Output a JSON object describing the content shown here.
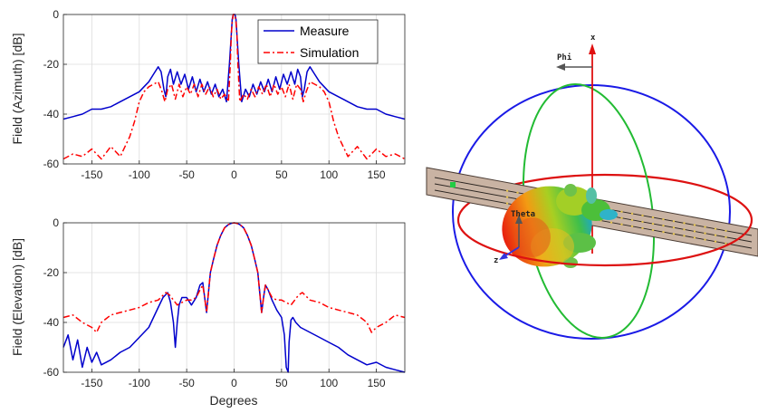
{
  "chart_data": [
    {
      "type": "line",
      "xlabel": "",
      "ylabel": "Field (Azimuth) [dB]",
      "xlim": [
        -180,
        180
      ],
      "ylim": [
        -60,
        0
      ],
      "xticks": [
        -150,
        -100,
        -50,
        0,
        50,
        100,
        150
      ],
      "yticks": [
        -60,
        -40,
        -20,
        0
      ],
      "grid": true,
      "legend_position": "top-right",
      "series": [
        {
          "name": "Measure",
          "color": "#0000cc",
          "style": "solid",
          "x": [
            -180,
            -170,
            -160,
            -150,
            -140,
            -130,
            -120,
            -110,
            -100,
            -95,
            -90,
            -85,
            -80,
            -77,
            -74,
            -72,
            -70,
            -67,
            -64,
            -60,
            -56,
            -52,
            -48,
            -44,
            -40,
            -36,
            -32,
            -28,
            -24,
            -20,
            -16,
            -12,
            -8,
            -5,
            -3,
            -2,
            -1,
            0,
            1,
            2,
            3,
            5,
            8,
            12,
            16,
            20,
            24,
            28,
            32,
            36,
            40,
            44,
            48,
            52,
            56,
            60,
            64,
            67,
            70,
            72,
            74,
            77,
            80,
            85,
            90,
            95,
            100,
            110,
            120,
            130,
            140,
            150,
            160,
            170,
            180
          ],
          "values": [
            -42,
            -41,
            -40,
            -38,
            -38,
            -37,
            -35,
            -33,
            -31,
            -29,
            -27,
            -24,
            -21,
            -23,
            -30,
            -33,
            -25,
            -22,
            -28,
            -23,
            -28,
            -24,
            -30,
            -25,
            -31,
            -26,
            -31,
            -27,
            -32,
            -28,
            -33,
            -30,
            -35,
            -20,
            -8,
            -2,
            0,
            0,
            0,
            -2,
            -8,
            -20,
            -35,
            -30,
            -33,
            -28,
            -32,
            -27,
            -31,
            -26,
            -31,
            -25,
            -30,
            -24,
            -28,
            -23,
            -28,
            -22,
            -25,
            -33,
            -30,
            -23,
            -21,
            -24,
            -27,
            -29,
            -31,
            -33,
            -35,
            -37,
            -38,
            -38,
            -40,
            -41,
            -42
          ]
        },
        {
          "name": "Simulation",
          "color": "#ff0000",
          "style": "dashdot",
          "x": [
            -180,
            -170,
            -160,
            -150,
            -140,
            -130,
            -120,
            -110,
            -105,
            -100,
            -95,
            -90,
            -85,
            -80,
            -76,
            -73,
            -70,
            -66,
            -62,
            -58,
            -54,
            -50,
            -46,
            -42,
            -38,
            -34,
            -30,
            -26,
            -22,
            -18,
            -14,
            -10,
            -6,
            -4,
            -3,
            -2,
            -1,
            0,
            1,
            2,
            3,
            4,
            6,
            10,
            14,
            18,
            22,
            26,
            30,
            34,
            38,
            42,
            46,
            50,
            54,
            58,
            62,
            66,
            70,
            73,
            76,
            80,
            85,
            90,
            95,
            100,
            105,
            110,
            120,
            130,
            140,
            150,
            160,
            170,
            180
          ],
          "values": [
            -58,
            -56,
            -57,
            -54,
            -58,
            -53,
            -57,
            -49,
            -43,
            -35,
            -31,
            -29,
            -28,
            -27,
            -31,
            -35,
            -30,
            -28,
            -34,
            -28,
            -33,
            -29,
            -32,
            -28,
            -33,
            -28,
            -32,
            -29,
            -33,
            -30,
            -34,
            -32,
            -35,
            -20,
            -8,
            -3,
            0,
            0,
            0,
            -3,
            -8,
            -20,
            -35,
            -32,
            -34,
            -30,
            -33,
            -29,
            -32,
            -28,
            -33,
            -28,
            -32,
            -29,
            -33,
            -28,
            -34,
            -28,
            -30,
            -35,
            -31,
            -27,
            -28,
            -29,
            -31,
            -35,
            -43,
            -49,
            -57,
            -53,
            -58,
            -54,
            -57,
            -56,
            -58
          ]
        }
      ]
    },
    {
      "type": "line",
      "xlabel": "Degrees",
      "ylabel": "Field (Elevation) [dB]",
      "xlim": [
        -180,
        180
      ],
      "ylim": [
        -60,
        0
      ],
      "xticks": [
        -150,
        -100,
        -50,
        0,
        50,
        100,
        150
      ],
      "yticks": [
        -60,
        -40,
        -20,
        0
      ],
      "grid": true,
      "series": [
        {
          "name": "Measure",
          "color": "#0000cc",
          "style": "solid",
          "x": [
            -180,
            -175,
            -170,
            -165,
            -160,
            -155,
            -150,
            -145,
            -140,
            -130,
            -120,
            -110,
            -100,
            -90,
            -85,
            -80,
            -75,
            -70,
            -67,
            -64,
            -62,
            -60,
            -58,
            -55,
            -50,
            -45,
            -40,
            -36,
            -33,
            -31,
            -29,
            -27,
            -25,
            -22,
            -18,
            -14,
            -10,
            -6,
            -3,
            0,
            3,
            6,
            10,
            14,
            18,
            22,
            25,
            27,
            29,
            31,
            33,
            36,
            40,
            45,
            50,
            53,
            55,
            57,
            58,
            60,
            62,
            65,
            70,
            80,
            90,
            100,
            110,
            120,
            130,
            140,
            150,
            160,
            170,
            180
          ],
          "values": [
            -50,
            -45,
            -55,
            -47,
            -58,
            -50,
            -56,
            -52,
            -57,
            -55,
            -52,
            -50,
            -46,
            -42,
            -38,
            -34,
            -30,
            -28,
            -32,
            -40,
            -50,
            -40,
            -33,
            -30,
            -30,
            -33,
            -30,
            -25,
            -24,
            -30,
            -36,
            -28,
            -20,
            -15,
            -9,
            -5,
            -2,
            -0.7,
            -0.2,
            0,
            -0.2,
            -0.7,
            -2,
            -5,
            -9,
            -15,
            -20,
            -28,
            -36,
            -30,
            -25,
            -27,
            -31,
            -35,
            -38,
            -45,
            -58,
            -60,
            -48,
            -39,
            -38,
            -40,
            -42,
            -44,
            -46,
            -48,
            -50,
            -53,
            -55,
            -57,
            -56,
            -58,
            -59,
            -60
          ]
        },
        {
          "name": "Simulation",
          "color": "#ff0000",
          "style": "dashdot",
          "x": [
            -180,
            -170,
            -160,
            -150,
            -145,
            -140,
            -130,
            -120,
            -110,
            -100,
            -90,
            -80,
            -72,
            -68,
            -64,
            -60,
            -55,
            -50,
            -45,
            -40,
            -36,
            -33,
            -31,
            -29,
            -27,
            -25,
            -22,
            -18,
            -14,
            -10,
            -6,
            -3,
            0,
            3,
            6,
            10,
            14,
            18,
            22,
            25,
            27,
            29,
            31,
            33,
            36,
            40,
            45,
            50,
            55,
            60,
            64,
            68,
            72,
            80,
            90,
            100,
            110,
            120,
            130,
            140,
            145,
            150,
            160,
            170,
            180
          ],
          "values": [
            -38,
            -37,
            -40,
            -42,
            -44,
            -40,
            -37,
            -36,
            -35,
            -34,
            -32,
            -31,
            -28,
            -29,
            -31,
            -33,
            -32,
            -31,
            -31,
            -30,
            -27,
            -25,
            -30,
            -36,
            -28,
            -20,
            -15,
            -9,
            -5,
            -2,
            -0.7,
            -0.2,
            0,
            -0.2,
            -0.7,
            -2,
            -5,
            -9,
            -15,
            -20,
            -28,
            -36,
            -30,
            -25,
            -27,
            -30,
            -31,
            -31,
            -32,
            -33,
            -31,
            -29,
            -28,
            -31,
            -32,
            -34,
            -35,
            -36,
            -37,
            -40,
            -44,
            -42,
            -40,
            -37,
            -38
          ]
        }
      ]
    }
  ],
  "antenna_3d": {
    "axis_labels": {
      "x": "x",
      "phi": "Phi",
      "theta": "Theta",
      "z": "z"
    },
    "colors": {
      "azimuth_ring": "#dd1111",
      "elevation_ring": "#1a1ae6",
      "green_ring": "#22bb33",
      "board": "#c9b3a3"
    }
  }
}
